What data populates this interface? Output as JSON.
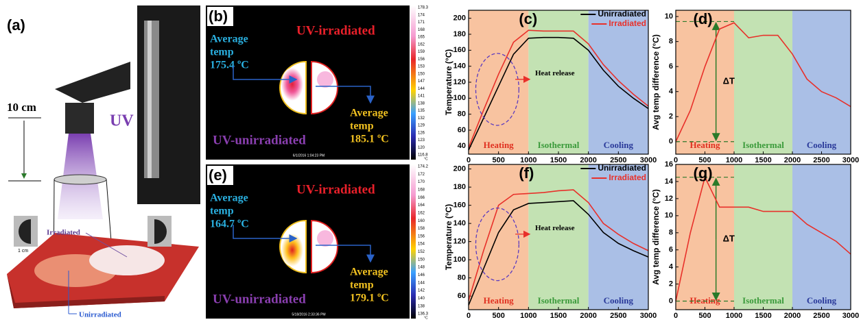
{
  "setup": {
    "label": "(a)",
    "scale": "10 cm",
    "uv": "UV",
    "irradiated": "Irradiated",
    "unirradiated": "Unirradiated",
    "size": "1 cm"
  },
  "thermal": [
    {
      "label": "(b)",
      "top_right": "UV-irradiated",
      "bottom_left": "UV-unirradiated",
      "left_text": [
        "Average",
        "temp",
        "175.4 ºC"
      ],
      "right_text": [
        "Average",
        "temp",
        "185.1 ºC"
      ],
      "timestamp": "6/1/2016 1:04:23 PM",
      "unit": "°C",
      "colorbar": [
        "178.3",
        "174",
        "171",
        "168",
        "165",
        "162",
        "159",
        "156",
        "153",
        "150",
        "147",
        "144",
        "141",
        "138",
        "135",
        "132",
        "129",
        "126",
        "123",
        "120",
        "116.8"
      ]
    },
    {
      "label": "(e)",
      "top_right": "UV-irradiated",
      "bottom_left": "UV-unirradiated",
      "left_text": [
        "Average",
        "temp",
        "164.7 ºC"
      ],
      "right_text": [
        "Average",
        "temp",
        "179.1 ºC"
      ],
      "timestamp": "5/18/2016 2:33:36 PM",
      "unit": "°C",
      "colorbar": [
        "174.2",
        "172",
        "170",
        "168",
        "166",
        "164",
        "162",
        "160",
        "158",
        "156",
        "154",
        "152",
        "150",
        "148",
        "146",
        "144",
        "142",
        "140",
        "138",
        "136.3"
      ]
    }
  ],
  "chart_data": [
    {
      "type": "line",
      "label": "(c)",
      "y_label": "Temperature (°C)",
      "x": [
        0,
        250,
        500,
        750,
        1000,
        1250,
        1500,
        1750,
        2000,
        2250,
        2500,
        2750,
        3000
      ],
      "xlim": [
        0,
        3000
      ],
      "xticks": [
        0,
        500,
        1000,
        1500,
        2000,
        2500,
        3000
      ],
      "ylim": [
        30,
        210
      ],
      "yticks": [
        40,
        60,
        80,
        100,
        120,
        140,
        160,
        180,
        200
      ],
      "legend": "top-right",
      "annotation": "Heat release",
      "regions": [
        {
          "label": "Heating",
          "from": 0,
          "to": 1000,
          "color": "#f8c3a0",
          "text_color": "#e03020"
        },
        {
          "label": "Isothermal",
          "from": 1000,
          "to": 2000,
          "color": "#c3e2b3",
          "text_color": "#3a9a3a"
        },
        {
          "label": "Cooling",
          "from": 2000,
          "to": 3000,
          "color": "#aabfe6",
          "text_color": "#2a3a9a"
        }
      ],
      "series": [
        {
          "name": "Unirradiated",
          "color": "#000000",
          "values": [
            35,
            75,
            115,
            155,
            175,
            176,
            176,
            175,
            160,
            135,
            115,
            100,
            87
          ]
        },
        {
          "name": "Irradiated",
          "color": "#e8302a",
          "values": [
            38,
            85,
            130,
            170,
            185,
            184,
            184,
            184,
            168,
            142,
            122,
            105,
            90
          ]
        }
      ]
    },
    {
      "type": "line",
      "label": "(d)",
      "y_label": "Avg temp difference (°C)",
      "x": [
        0,
        250,
        500,
        750,
        1000,
        1250,
        1500,
        1750,
        2000,
        2250,
        2500,
        2750,
        3000
      ],
      "xlim": [
        0,
        3000
      ],
      "xticks": [
        0,
        500,
        1000,
        1500,
        2000,
        2500,
        3000
      ],
      "ylim": [
        -1,
        10.5
      ],
      "yticks": [
        0,
        2,
        4,
        6,
        8,
        10
      ],
      "ref_lines": [
        0,
        9.6
      ],
      "delta": "ΔT",
      "regions": [
        {
          "label": "Heating",
          "from": 0,
          "to": 1000,
          "color": "#f8c3a0",
          "text_color": "#e03020"
        },
        {
          "label": "Isothermal",
          "from": 1000,
          "to": 2000,
          "color": "#c3e2b3",
          "text_color": "#3a9a3a"
        },
        {
          "label": "Cooling",
          "from": 2000,
          "to": 3000,
          "color": "#aabfe6",
          "text_color": "#2a3a9a"
        }
      ],
      "series": [
        {
          "color": "#e8302a",
          "values": [
            0,
            2.5,
            6,
            9,
            9.5,
            8.3,
            8.5,
            8.5,
            7,
            5,
            4,
            3.5,
            2.8
          ]
        }
      ]
    },
    {
      "type": "line",
      "label": "(f)",
      "y_label": "Temperature (°C)",
      "x": [
        0,
        250,
        500,
        750,
        1000,
        1250,
        1500,
        1750,
        2000,
        2250,
        2500,
        2750,
        3000
      ],
      "xlim": [
        0,
        3000
      ],
      "xticks": [
        0,
        500,
        1000,
        1500,
        2000,
        2500,
        3000
      ],
      "ylim": [
        45,
        205
      ],
      "yticks": [
        60,
        80,
        100,
        120,
        140,
        160,
        180,
        200
      ],
      "legend": "top-right",
      "annotation": "Heat release",
      "regions": [
        {
          "label": "Heating",
          "from": 0,
          "to": 1000,
          "color": "#f8c3a0",
          "text_color": "#e03020"
        },
        {
          "label": "Isothermal",
          "from": 1000,
          "to": 2000,
          "color": "#c3e2b3",
          "text_color": "#3a9a3a"
        },
        {
          "label": "Cooling",
          "from": 2000,
          "to": 3000,
          "color": "#aabfe6",
          "text_color": "#2a3a9a"
        }
      ],
      "series": [
        {
          "name": "Unirradiated",
          "color": "#000000",
          "values": [
            50,
            90,
            130,
            155,
            162,
            163,
            164,
            165,
            150,
            130,
            118,
            110,
            103
          ]
        },
        {
          "name": "Irradiated",
          "color": "#e8302a",
          "values": [
            55,
            110,
            160,
            172,
            173,
            174,
            176,
            177,
            163,
            140,
            128,
            118,
            110
          ]
        }
      ]
    },
    {
      "type": "line",
      "label": "(g)",
      "y_label": "Avg temp difference (°C)",
      "x": [
        0,
        250,
        500,
        750,
        1000,
        1250,
        1500,
        1750,
        2000,
        2250,
        2500,
        2750,
        3000
      ],
      "xlim": [
        0,
        3000
      ],
      "xticks": [
        0,
        500,
        1000,
        1500,
        2000,
        2500,
        3000
      ],
      "ylim": [
        -1,
        16
      ],
      "yticks": [
        0,
        2,
        4,
        6,
        8,
        10,
        12,
        14,
        16
      ],
      "ref_lines": [
        0,
        14.5
      ],
      "delta": "ΔT",
      "regions": [
        {
          "label": "Heating",
          "from": 0,
          "to": 1000,
          "color": "#f8c3a0",
          "text_color": "#e03020"
        },
        {
          "label": "Isothermal",
          "from": 1000,
          "to": 2000,
          "color": "#c3e2b3",
          "text_color": "#3a9a3a"
        },
        {
          "label": "Cooling",
          "from": 2000,
          "to": 3000,
          "color": "#aabfe6",
          "text_color": "#2a3a9a"
        }
      ],
      "series": [
        {
          "color": "#e8302a",
          "values": [
            0,
            8,
            14.5,
            11,
            11,
            11,
            10.5,
            10.5,
            10.5,
            9,
            8,
            7,
            5.5
          ]
        }
      ]
    }
  ]
}
